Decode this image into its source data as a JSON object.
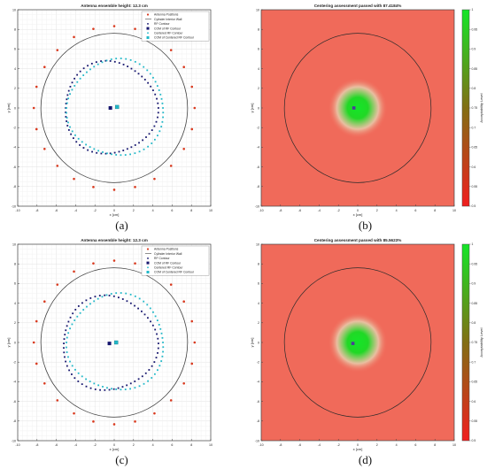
{
  "figure": {
    "panels": [
      {
        "caption": "(a)"
      },
      {
        "caption": "(b)"
      },
      {
        "caption": "(c)"
      },
      {
        "caption": "(d)"
      }
    ]
  },
  "chart_data": [
    {
      "type": "scatter",
      "title": "Antenna ensemble height: 12.3 cm",
      "xlabel": "x [cm]",
      "ylabel": "y [cm]",
      "xlim": [
        -10,
        10
      ],
      "ylim": [
        -10,
        10
      ],
      "xticks": [
        -10,
        -8,
        -6,
        -4,
        -2,
        0,
        2,
        4,
        6,
        8,
        10
      ],
      "yticks": [
        -10,
        -8,
        -6,
        -4,
        -2,
        0,
        2,
        4,
        6,
        8,
        10
      ],
      "grid": true,
      "legend_position": "top-right",
      "colors": {
        "antenna": "#d93a1f",
        "wall": "#444444",
        "rf": "#16166e",
        "centered": "#22b8c8"
      },
      "series": [
        {
          "name": "Antenna Positions",
          "kind": "marker",
          "x": [
            0,
            2.16,
            4.17,
            5.89,
            7.22,
            8.05,
            8.33,
            8.05,
            7.22,
            5.89,
            4.17,
            2.16,
            0,
            -2.16,
            -4.17,
            -5.89,
            -7.22,
            -8.05,
            -8.33,
            -8.05,
            -7.22,
            -5.89,
            -4.17,
            -2.16
          ],
          "y": [
            8.33,
            8.05,
            7.22,
            5.89,
            4.17,
            2.16,
            0,
            -2.16,
            -4.17,
            -5.89,
            -7.22,
            -8.05,
            -8.33,
            -8.05,
            -7.22,
            -5.89,
            -4.17,
            -2.16,
            0,
            2.16,
            4.17,
            5.89,
            7.22,
            8.05
          ]
        },
        {
          "name": "Cylinder Interior Wall",
          "kind": "circle",
          "center": [
            0,
            0
          ],
          "radius": 7.6
        },
        {
          "name": "RF Contour",
          "kind": "dashed-ring",
          "center": [
            -0.4,
            0
          ],
          "radius": [
            4.8,
            4.7
          ]
        },
        {
          "name": "COM of RF Contour",
          "kind": "square",
          "x": [
            -0.4
          ],
          "y": [
            0
          ]
        },
        {
          "name": "Centered RF Contour",
          "kind": "dashed-ring",
          "center": [
            0.2,
            0
          ],
          "radius": [
            5.0,
            4.9
          ]
        },
        {
          "name": "COM of Centered RF Contour",
          "kind": "square",
          "x": [
            0.3
          ],
          "y": [
            0.1
          ]
        }
      ]
    },
    {
      "type": "heatmap",
      "title": "Centering assessment passed with 87.4184%",
      "xlabel": "x [cm]",
      "ylabel": "y [cm]",
      "xlim": [
        -10,
        10
      ],
      "ylim": [
        -10,
        10
      ],
      "xticks": [
        -10,
        -8,
        -6,
        -4,
        -2,
        0,
        2,
        4,
        6,
        8,
        10
      ],
      "yticks": [
        -10,
        -8,
        -6,
        -4,
        -2,
        0,
        2,
        4,
        6,
        8,
        10
      ],
      "colorbar": {
        "label": "Acceptability Level",
        "range": [
          0.5,
          1
        ],
        "ticks": [
          0.5,
          0.55,
          0.6,
          0.65,
          0.7,
          0.75,
          0.8,
          0.85,
          0.9,
          0.95,
          1
        ]
      },
      "background_level": 0.5,
      "hotspot": {
        "center": [
          0,
          0
        ],
        "level": 1.0,
        "radius": 1.4
      },
      "cylinder_wall_radius": 7.6,
      "marker": {
        "x": -0.4,
        "y": 0
      }
    },
    {
      "type": "scatter",
      "title": "Antenna ensemble height: 12.3 cm",
      "xlabel": "x [cm]",
      "ylabel": "y [cm]",
      "xlim": [
        -10,
        10
      ],
      "ylim": [
        -10,
        10
      ],
      "xticks": [
        -10,
        -8,
        -6,
        -4,
        -2,
        0,
        2,
        4,
        6,
        8,
        10
      ],
      "yticks": [
        -10,
        -8,
        -6,
        -4,
        -2,
        0,
        2,
        4,
        6,
        8,
        10
      ],
      "grid": true,
      "legend_position": "top-right",
      "colors": {
        "antenna": "#d93a1f",
        "wall": "#444444",
        "rf": "#16166e",
        "centered": "#22b8c8"
      },
      "series": [
        {
          "name": "Antenna Positions",
          "kind": "marker",
          "x": [
            0,
            2.16,
            4.17,
            5.89,
            7.22,
            8.05,
            8.33,
            8.05,
            7.22,
            5.89,
            4.17,
            2.16,
            0,
            -2.16,
            -4.17,
            -5.89,
            -7.22,
            -8.05,
            -8.33,
            -8.05,
            -7.22,
            -5.89,
            -4.17,
            -2.16
          ],
          "y": [
            8.33,
            8.05,
            7.22,
            5.89,
            4.17,
            2.16,
            0,
            -2.16,
            -4.17,
            -5.89,
            -7.22,
            -8.05,
            -8.33,
            -8.05,
            -7.22,
            -5.89,
            -4.17,
            -2.16,
            0,
            2.16,
            4.17,
            5.89,
            7.22,
            8.05
          ]
        },
        {
          "name": "Cylinder Interior Wall",
          "kind": "circle",
          "center": [
            0,
            0
          ],
          "radius": 7.6
        },
        {
          "name": "RF Contour",
          "kind": "dashed-ring",
          "center": [
            -0.5,
            -0.1
          ],
          "radius": [
            4.9,
            4.8
          ]
        },
        {
          "name": "COM of RF Contour",
          "kind": "square",
          "x": [
            -0.5
          ],
          "y": [
            -0.1
          ]
        },
        {
          "name": "Centered RF Contour",
          "kind": "dashed-ring",
          "center": [
            0.2,
            0
          ],
          "radius": [
            5.0,
            4.9
          ]
        },
        {
          "name": "COM of Centered RF Contour",
          "kind": "square",
          "x": [
            0.2
          ],
          "y": [
            0
          ]
        }
      ]
    },
    {
      "type": "heatmap",
      "title": "Centering assessment passed with 85.5623%",
      "xlabel": "x [cm]",
      "ylabel": "y [cm]",
      "xlim": [
        -10,
        10
      ],
      "ylim": [
        -10,
        10
      ],
      "xticks": [
        -10,
        -8,
        -6,
        -4,
        -2,
        0,
        2,
        4,
        6,
        8,
        10
      ],
      "yticks": [
        -10,
        -8,
        -6,
        -4,
        -2,
        0,
        2,
        4,
        6,
        8,
        10
      ],
      "colorbar": {
        "label": "Acceptability Level",
        "range": [
          0.5,
          1
        ],
        "ticks": [
          0.5,
          0.55,
          0.6,
          0.65,
          0.7,
          0.75,
          0.8,
          0.85,
          0.9,
          0.95,
          1
        ]
      },
      "background_level": 0.5,
      "hotspot": {
        "center": [
          0,
          0
        ],
        "level": 1.0,
        "radius": 1.4
      },
      "cylinder_wall_radius": 7.6,
      "marker": {
        "x": -0.5,
        "y": -0.1
      }
    }
  ]
}
